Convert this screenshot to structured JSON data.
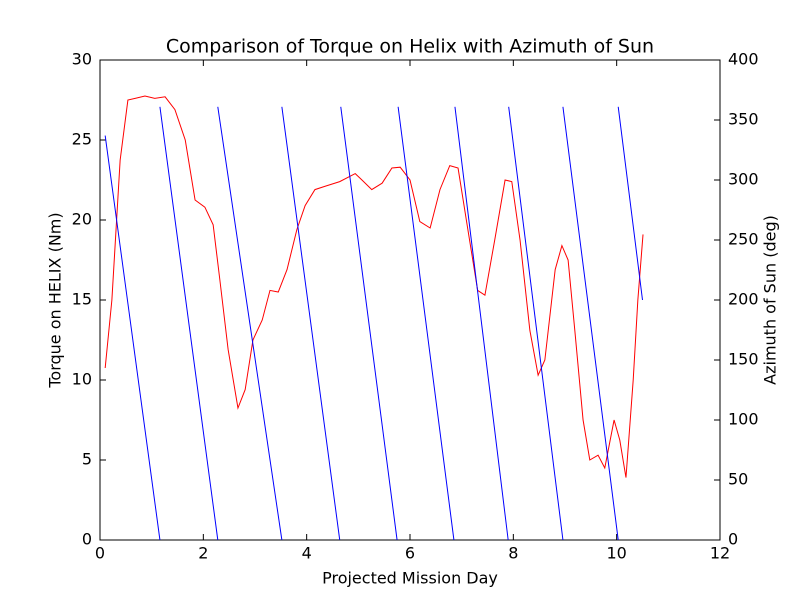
{
  "chart_data": {
    "type": "line",
    "title": "Comparison of Torque on Helix with Azimuth of Sun",
    "x_label": "Projected Mission Day",
    "y_label": "Torque on HELIX (Nm)",
    "y2_label": "Azimuth of Sun (deg)",
    "xlim": [
      0,
      12
    ],
    "xticks": [
      0,
      2,
      4,
      6,
      8,
      10,
      12
    ],
    "ylim": [
      0,
      30
    ],
    "yticks": [
      0,
      5,
      10,
      15,
      20,
      25,
      30
    ],
    "y2lim": [
      0,
      400
    ],
    "y2ticks": [
      0,
      50,
      100,
      150,
      200,
      250,
      300,
      350,
      400
    ],
    "grid": false,
    "series": [
      {
        "color": "#ff0000",
        "x": [
          0.1,
          0.23,
          0.39,
          0.54,
          0.68,
          0.87,
          1.06,
          1.26,
          1.45,
          1.65,
          1.84,
          2.03,
          2.19,
          2.32,
          2.48,
          2.67,
          2.81,
          2.96,
          3.14,
          3.29,
          3.45,
          3.62,
          3.81,
          3.97,
          4.16,
          4.35,
          4.64,
          4.94,
          5.07,
          5.26,
          5.46,
          5.65,
          5.81,
          6.0,
          6.19,
          6.39,
          6.58,
          6.77,
          6.93,
          7.12,
          7.31,
          7.45,
          7.64,
          7.84,
          7.97,
          8.13,
          8.32,
          8.48,
          8.61,
          8.81,
          8.94,
          9.06,
          9.19,
          9.35,
          9.48,
          9.64,
          9.77,
          9.95,
          10.06,
          10.18,
          10.32,
          10.41,
          10.51
        ],
        "values": [
          10.75,
          15,
          23.75,
          27.5,
          27.6,
          27.75,
          27.6,
          27.7,
          26.9,
          25,
          21.25,
          20.8,
          19.7,
          16.25,
          11.9,
          8.25,
          9.4,
          12.5,
          13.75,
          15.6,
          15.5,
          16.9,
          19.4,
          20.9,
          21.9,
          22.1,
          22.4,
          22.9,
          22.5,
          21.9,
          22.3,
          23.25,
          23.3,
          22.5,
          19.9,
          19.5,
          21.9,
          23.4,
          23.25,
          19.4,
          15.6,
          15.3,
          18.75,
          22.5,
          22.4,
          18.75,
          13.1,
          10.3,
          11.25,
          16.9,
          18.4,
          17.5,
          13.1,
          7.5,
          5,
          5.3,
          4.5,
          7.5,
          6.25,
          3.9,
          10,
          15,
          19.1
        ]
      },
      {
        "color": "#0000ff",
        "axis": "y2",
        "x": [
          0.1,
          1.16,
          1.16,
          1.16,
          2.28,
          2.28,
          2.28,
          3.52,
          3.52,
          3.52,
          4.64,
          4.65,
          4.66,
          5.75,
          5.76,
          5.77,
          6.85,
          6.86,
          6.87,
          7.9,
          7.9,
          7.91,
          8.96,
          8.96,
          8.96,
          10.03,
          10.03,
          10.03,
          10.5
        ],
        "values": [
          337,
          0,
          null,
          361,
          0,
          null,
          361,
          0,
          null,
          361,
          0,
          null,
          361,
          0,
          null,
          361,
          0,
          null,
          361,
          0,
          null,
          361,
          0,
          null,
          361,
          0,
          null,
          361,
          200
        ]
      }
    ]
  }
}
